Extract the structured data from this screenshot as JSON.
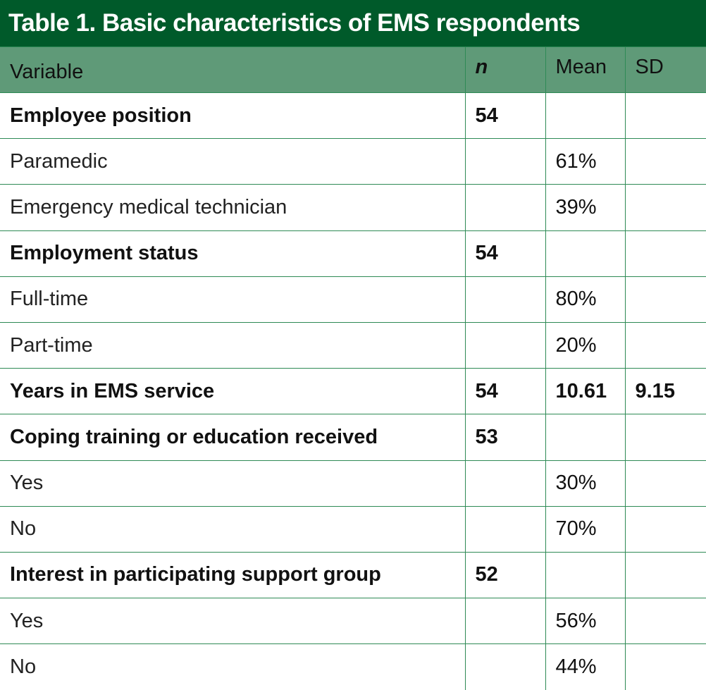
{
  "title": "Table 1. Basic characteristics of EMS respondents",
  "colors": {
    "title_bg": "#005a2a",
    "header_bg": "#5f9a78",
    "border": "#2e8a55"
  },
  "headers": {
    "variable": "Variable",
    "n": "n",
    "mean": "Mean",
    "sd": "SD"
  },
  "rows": [
    {
      "label": "Employee position",
      "n": "54",
      "mean": "",
      "sd": "",
      "bold": true
    },
    {
      "label": "Paramedic",
      "n": "",
      "mean": "61%",
      "sd": "",
      "bold": false
    },
    {
      "label": "Emergency medical technician",
      "n": "",
      "mean": "39%",
      "sd": "",
      "bold": false
    },
    {
      "label": "Employment status",
      "n": "54",
      "mean": "",
      "sd": "",
      "bold": true
    },
    {
      "label": "Full-time",
      "n": "",
      "mean": "80%",
      "sd": "",
      "bold": false
    },
    {
      "label": "Part-time",
      "n": "",
      "mean": "20%",
      "sd": "",
      "bold": false
    },
    {
      "label": "Years in EMS service",
      "n": "54",
      "mean": "10.61",
      "sd": "9.15",
      "bold": true
    },
    {
      "label": "Coping training or education received",
      "n": "53",
      "mean": "",
      "sd": "",
      "bold": true
    },
    {
      "label": "Yes",
      "n": "",
      "mean": "30%",
      "sd": "",
      "bold": false
    },
    {
      "label": "No",
      "n": "",
      "mean": "70%",
      "sd": "",
      "bold": false
    },
    {
      "label": "Interest in participating support group",
      "n": "52",
      "mean": "",
      "sd": "",
      "bold": true
    },
    {
      "label": "Yes",
      "n": "",
      "mean": "56%",
      "sd": "",
      "bold": false
    },
    {
      "label": "No",
      "n": "",
      "mean": "44%",
      "sd": "",
      "bold": false
    }
  ]
}
